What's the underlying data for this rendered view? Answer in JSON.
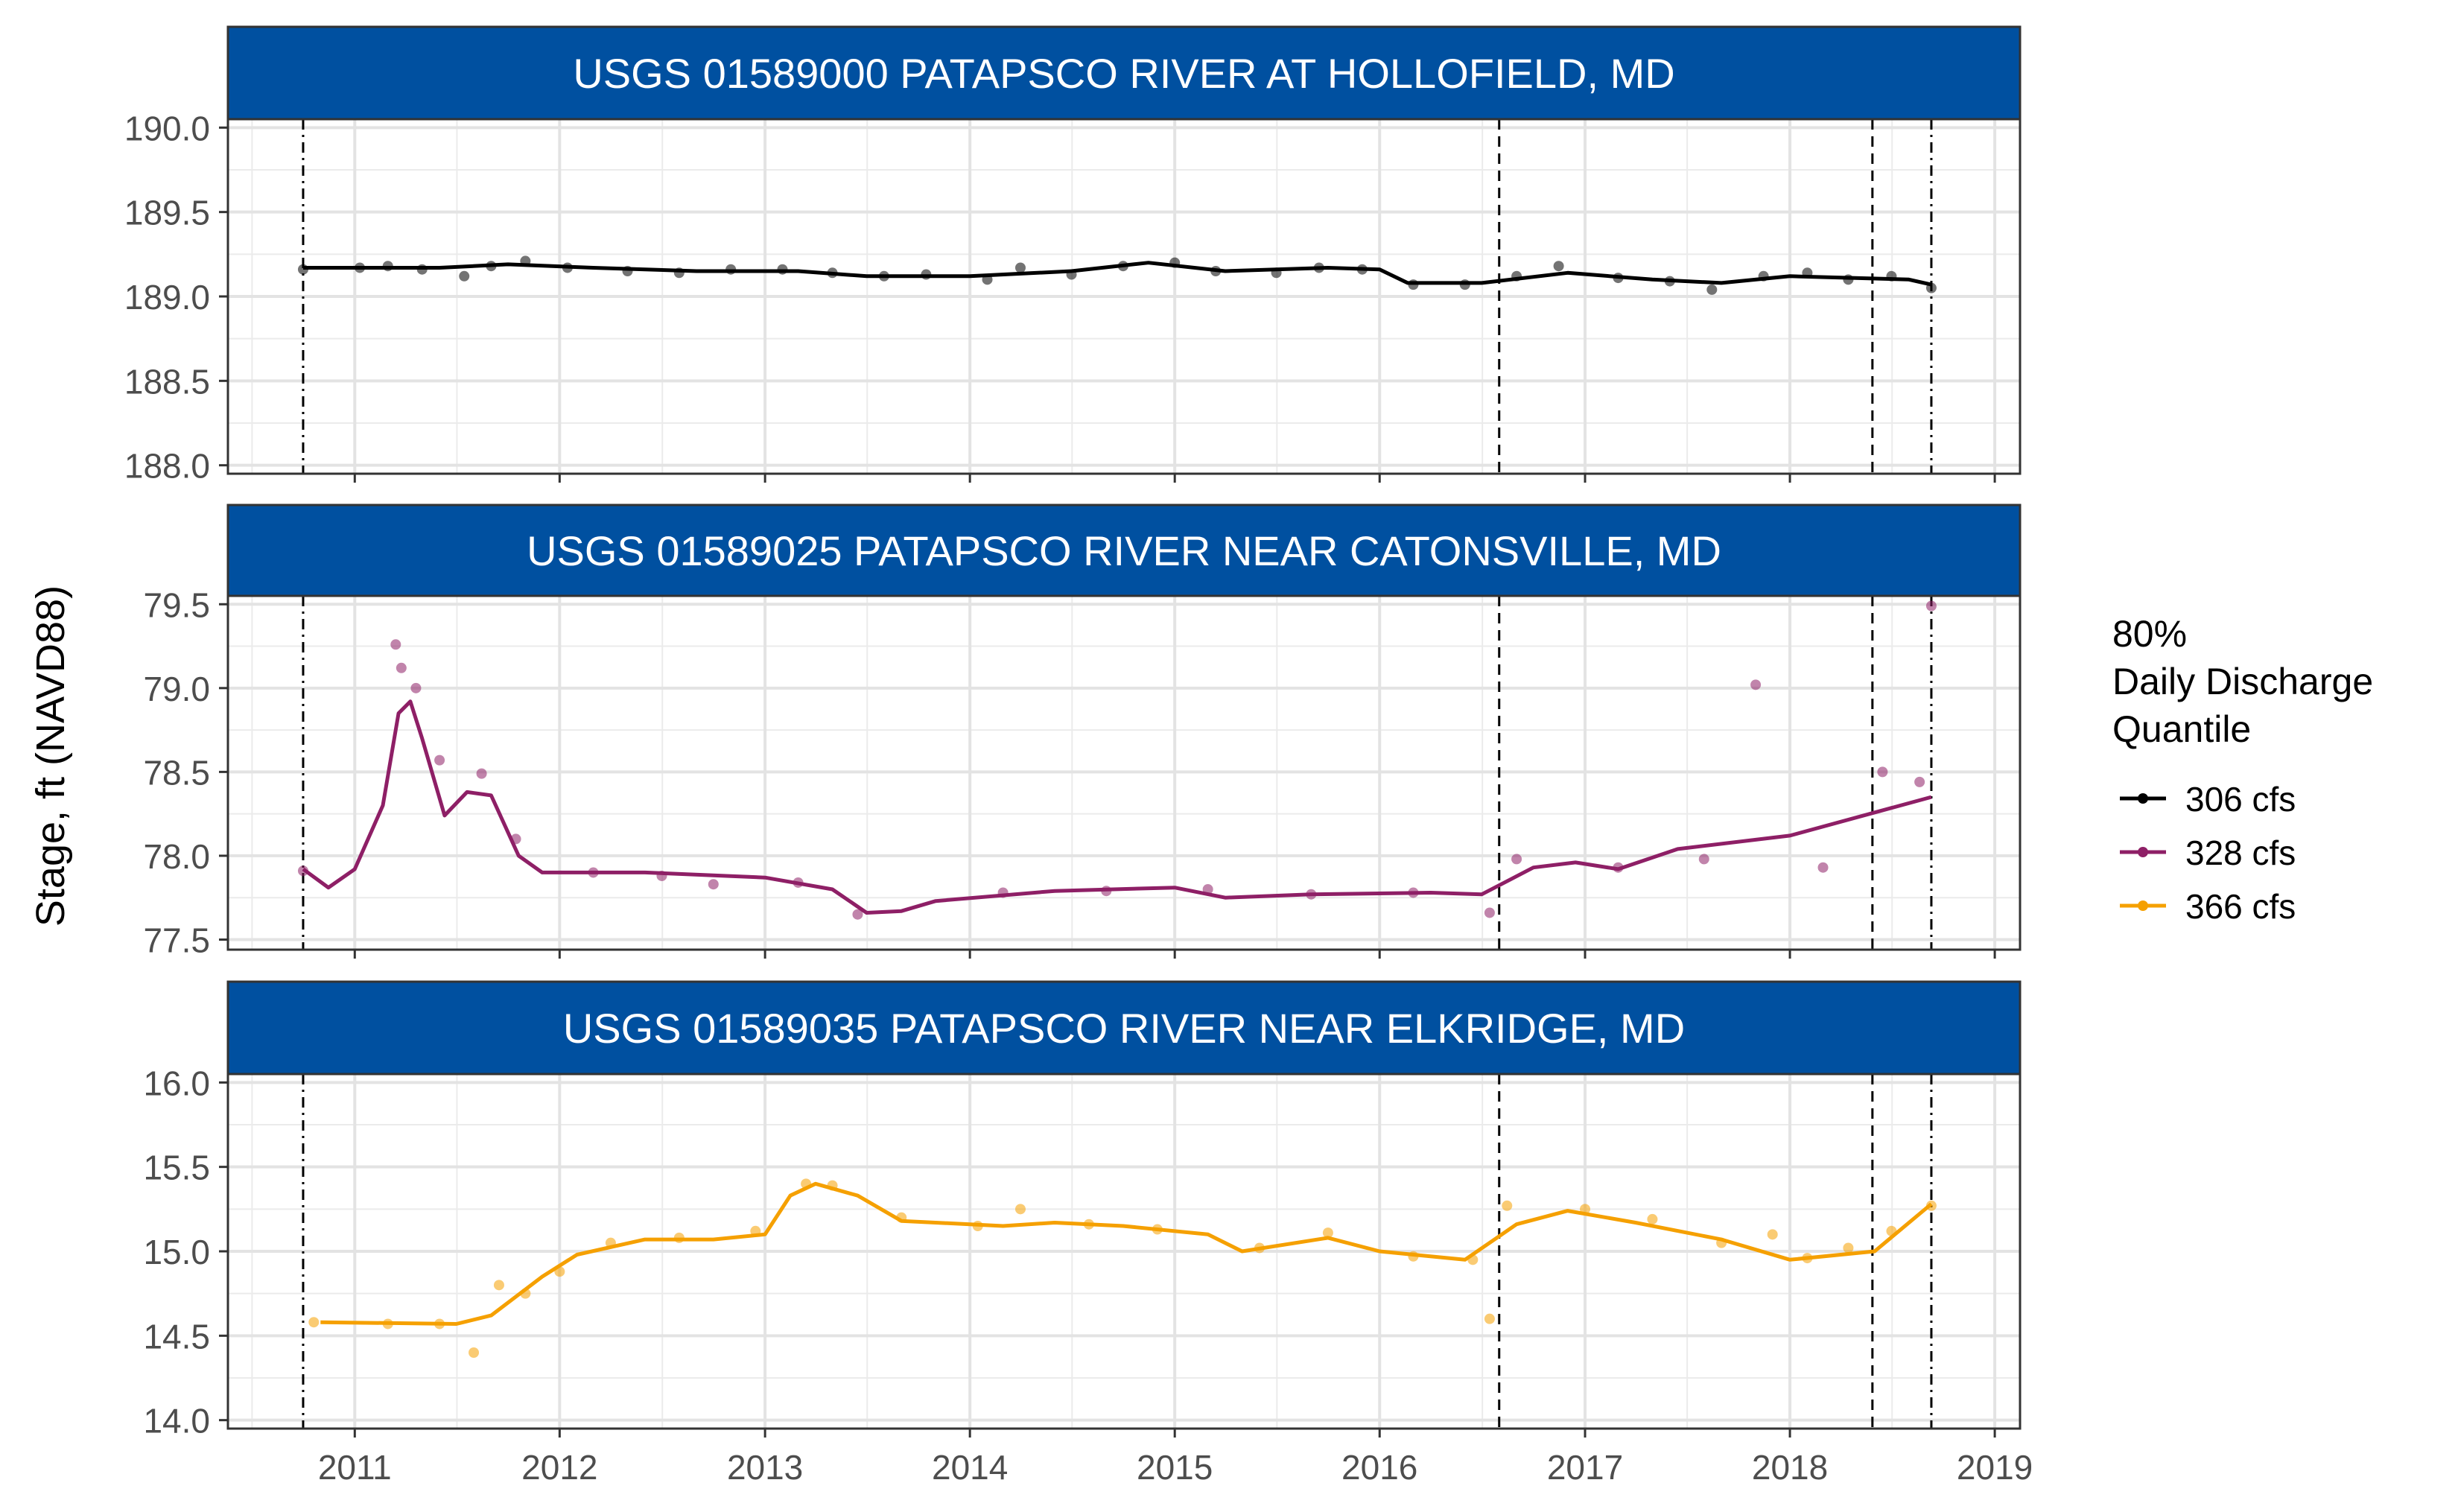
{
  "chart_data": {
    "type": "scatter",
    "ylabel": "Stage, ft (NAVD88)",
    "xlabel": "",
    "x_ticks": [
      "2011",
      "2012",
      "2013",
      "2014",
      "2015",
      "2016",
      "2017",
      "2018",
      "2019"
    ],
    "xlim": [
      "2010-05-20",
      "2019-02-15"
    ],
    "vlines": [
      {
        "date": "2010-10-01",
        "style": "dotdash"
      },
      {
        "date": "2016-08-01",
        "style": "dashed"
      },
      {
        "date": "2018-05-28",
        "style": "dashed"
      },
      {
        "date": "2018-09-10",
        "style": "dotdash"
      }
    ],
    "grid": true,
    "legend": {
      "title": [
        "80%",
        "Daily Discharge",
        "Quantile"
      ],
      "position": "right",
      "entries": [
        {
          "label": "306 cfs",
          "color": "#000000"
        },
        {
          "label": "328 cfs",
          "color": "#8e1f66"
        },
        {
          "label": "366 cfs",
          "color": "#f5a000"
        }
      ]
    },
    "panels": [
      {
        "strip": "USGS 01589000 PATAPSCO RIVER AT HOLLOFIELD, MD",
        "color": "#000000",
        "ylim": [
          187.95,
          190.05
        ],
        "y_ticks": [
          "188.0",
          "188.5",
          "189.0",
          "189.5",
          "190.0"
        ],
        "y_tick_values": [
          188.0,
          188.5,
          189.0,
          189.5,
          190.0
        ],
        "line": [
          [
            "2010-10-01",
            189.17
          ],
          [
            "2011-06-01",
            189.17
          ],
          [
            "2011-10-01",
            189.19
          ],
          [
            "2012-03-01",
            189.17
          ],
          [
            "2012-09-01",
            189.15
          ],
          [
            "2013-03-01",
            189.15
          ],
          [
            "2013-07-01",
            189.12
          ],
          [
            "2014-01-01",
            189.12
          ],
          [
            "2014-07-01",
            189.15
          ],
          [
            "2014-11-15",
            189.2
          ],
          [
            "2015-04-01",
            189.15
          ],
          [
            "2015-10-01",
            189.17
          ],
          [
            "2016-01-01",
            189.16
          ],
          [
            "2016-02-20",
            189.08
          ],
          [
            "2016-07-01",
            189.08
          ],
          [
            "2016-12-01",
            189.14
          ],
          [
            "2017-05-01",
            189.1
          ],
          [
            "2017-09-01",
            189.08
          ],
          [
            "2018-01-01",
            189.12
          ],
          [
            "2018-08-01",
            189.1
          ],
          [
            "2018-09-10",
            189.07
          ]
        ],
        "points": [
          [
            "2010-10-01",
            189.16
          ],
          [
            "2011-01-10",
            189.17
          ],
          [
            "2011-03-01",
            189.18
          ],
          [
            "2011-05-01",
            189.16
          ],
          [
            "2011-07-15",
            189.12
          ],
          [
            "2011-09-01",
            189.18
          ],
          [
            "2011-11-01",
            189.21
          ],
          [
            "2012-01-15",
            189.17
          ],
          [
            "2012-05-01",
            189.15
          ],
          [
            "2012-08-01",
            189.14
          ],
          [
            "2012-11-01",
            189.16
          ],
          [
            "2013-02-01",
            189.16
          ],
          [
            "2013-05-01",
            189.14
          ],
          [
            "2013-08-01",
            189.12
          ],
          [
            "2013-10-15",
            189.13
          ],
          [
            "2014-02-01",
            189.1
          ],
          [
            "2014-04-01",
            189.17
          ],
          [
            "2014-07-01",
            189.13
          ],
          [
            "2014-10-01",
            189.18
          ],
          [
            "2015-01-01",
            189.2
          ],
          [
            "2015-03-15",
            189.15
          ],
          [
            "2015-07-01",
            189.14
          ],
          [
            "2015-09-15",
            189.17
          ],
          [
            "2015-12-01",
            189.16
          ],
          [
            "2016-03-01",
            189.07
          ],
          [
            "2016-06-01",
            189.07
          ],
          [
            "2016-09-01",
            189.12
          ],
          [
            "2016-11-15",
            189.18
          ],
          [
            "2017-03-01",
            189.11
          ],
          [
            "2017-06-01",
            189.09
          ],
          [
            "2017-08-15",
            189.04
          ],
          [
            "2017-11-15",
            189.12
          ],
          [
            "2018-02-01",
            189.14
          ],
          [
            "2018-04-15",
            189.1
          ],
          [
            "2018-07-01",
            189.12
          ],
          [
            "2018-09-10",
            189.05
          ]
        ]
      },
      {
        "strip": "USGS 01589025 PATAPSCO RIVER NEAR CATONSVILLE, MD",
        "color": "#8e1f66",
        "ylim": [
          77.44,
          79.55
        ],
        "y_ticks": [
          "77.5",
          "78.0",
          "78.5",
          "79.0",
          "79.5"
        ],
        "y_tick_values": [
          77.5,
          78.0,
          78.5,
          79.0,
          79.5
        ],
        "line": [
          [
            "2010-10-01",
            77.92
          ],
          [
            "2010-11-15",
            77.81
          ],
          [
            "2011-01-01",
            77.92
          ],
          [
            "2011-02-20",
            78.3
          ],
          [
            "2011-03-20",
            78.85
          ],
          [
            "2011-04-10",
            78.92
          ],
          [
            "2011-05-01",
            78.7
          ],
          [
            "2011-06-10",
            78.24
          ],
          [
            "2011-07-20",
            78.38
          ],
          [
            "2011-09-01",
            78.36
          ],
          [
            "2011-10-20",
            78.0
          ],
          [
            "2011-12-01",
            77.9
          ],
          [
            "2012-06-01",
            77.9
          ],
          [
            "2013-01-01",
            77.87
          ],
          [
            "2013-05-01",
            77.8
          ],
          [
            "2013-07-01",
            77.66
          ],
          [
            "2013-09-01",
            77.67
          ],
          [
            "2013-11-01",
            77.73
          ],
          [
            "2014-06-01",
            77.79
          ],
          [
            "2015-01-01",
            77.81
          ],
          [
            "2015-04-01",
            77.75
          ],
          [
            "2015-09-01",
            77.77
          ],
          [
            "2016-04-01",
            77.78
          ],
          [
            "2016-07-01",
            77.77
          ],
          [
            "2016-10-01",
            77.93
          ],
          [
            "2016-12-15",
            77.96
          ],
          [
            "2017-03-01",
            77.92
          ],
          [
            "2017-06-15",
            78.04
          ],
          [
            "2018-01-01",
            78.12
          ],
          [
            "2018-09-10",
            78.35
          ]
        ],
        "points": [
          [
            "2010-10-01",
            77.91
          ],
          [
            "2011-03-15",
            79.26
          ],
          [
            "2011-03-25",
            79.12
          ],
          [
            "2011-04-20",
            79.0
          ],
          [
            "2011-06-01",
            78.57
          ],
          [
            "2011-08-15",
            78.49
          ],
          [
            "2011-10-15",
            78.1
          ],
          [
            "2012-03-01",
            77.9
          ],
          [
            "2012-07-01",
            77.88
          ],
          [
            "2012-10-01",
            77.83
          ],
          [
            "2013-03-01",
            77.84
          ],
          [
            "2013-06-15",
            77.65
          ],
          [
            "2014-03-01",
            77.78
          ],
          [
            "2014-09-01",
            77.79
          ],
          [
            "2015-03-01",
            77.8
          ],
          [
            "2015-09-01",
            77.77
          ],
          [
            "2016-03-01",
            77.78
          ],
          [
            "2016-07-15",
            77.66
          ],
          [
            "2016-09-01",
            77.98
          ],
          [
            "2017-03-01",
            77.93
          ],
          [
            "2017-08-01",
            77.98
          ],
          [
            "2017-11-01",
            79.02
          ],
          [
            "2018-03-01",
            77.93
          ],
          [
            "2018-06-15",
            78.5
          ],
          [
            "2018-09-10",
            79.49
          ],
          [
            "2018-08-20",
            78.44
          ]
        ]
      },
      {
        "strip": "USGS 01589035 PATAPSCO RIVER NEAR ELKRIDGE, MD",
        "color": "#f5a000",
        "ylim": [
          13.95,
          16.05
        ],
        "y_ticks": [
          "14.0",
          "14.5",
          "15.0",
          "15.5",
          "16.0"
        ],
        "y_tick_values": [
          14.0,
          14.5,
          15.0,
          15.5,
          16.0
        ],
        "line": [
          [
            "2010-11-01",
            14.58
          ],
          [
            "2011-07-01",
            14.57
          ],
          [
            "2011-09-01",
            14.62
          ],
          [
            "2011-12-01",
            14.85
          ],
          [
            "2012-02-01",
            14.98
          ],
          [
            "2012-06-01",
            15.07
          ],
          [
            "2012-10-01",
            15.07
          ],
          [
            "2013-01-01",
            15.1
          ],
          [
            "2013-02-15",
            15.33
          ],
          [
            "2013-04-01",
            15.4
          ],
          [
            "2013-06-15",
            15.33
          ],
          [
            "2013-09-01",
            15.18
          ],
          [
            "2014-03-01",
            15.15
          ],
          [
            "2014-06-01",
            15.17
          ],
          [
            "2014-10-01",
            15.15
          ],
          [
            "2015-03-01",
            15.1
          ],
          [
            "2015-05-01",
            15.0
          ],
          [
            "2015-10-01",
            15.08
          ],
          [
            "2016-01-01",
            15.0
          ],
          [
            "2016-06-01",
            14.95
          ],
          [
            "2016-09-01",
            15.16
          ],
          [
            "2016-12-01",
            15.24
          ],
          [
            "2017-04-01",
            15.17
          ],
          [
            "2017-09-01",
            15.07
          ],
          [
            "2018-01-01",
            14.95
          ],
          [
            "2018-06-01",
            15.0
          ],
          [
            "2018-09-10",
            15.28
          ]
        ],
        "points": [
          [
            "2010-10-20",
            14.58
          ],
          [
            "2011-03-01",
            14.57
          ],
          [
            "2011-06-01",
            14.57
          ],
          [
            "2011-08-01",
            14.4
          ],
          [
            "2011-09-15",
            14.8
          ],
          [
            "2011-11-01",
            14.75
          ],
          [
            "2012-01-01",
            14.88
          ],
          [
            "2012-04-01",
            15.05
          ],
          [
            "2012-08-01",
            15.08
          ],
          [
            "2012-12-15",
            15.12
          ],
          [
            "2013-03-15",
            15.4
          ],
          [
            "2013-05-01",
            15.39
          ],
          [
            "2013-09-01",
            15.2
          ],
          [
            "2014-01-15",
            15.15
          ],
          [
            "2014-04-01",
            15.25
          ],
          [
            "2014-08-01",
            15.16
          ],
          [
            "2014-12-01",
            15.13
          ],
          [
            "2015-06-01",
            15.02
          ],
          [
            "2015-10-01",
            15.11
          ],
          [
            "2016-03-01",
            14.97
          ],
          [
            "2016-06-15",
            14.95
          ],
          [
            "2016-07-15",
            14.6
          ],
          [
            "2016-08-15",
            15.27
          ],
          [
            "2017-01-01",
            15.25
          ],
          [
            "2017-05-01",
            15.19
          ],
          [
            "2017-09-01",
            15.05
          ],
          [
            "2017-12-01",
            15.1
          ],
          [
            "2018-02-01",
            14.96
          ],
          [
            "2018-04-15",
            15.02
          ],
          [
            "2018-07-01",
            15.12
          ],
          [
            "2018-09-10",
            15.27
          ]
        ]
      }
    ]
  }
}
